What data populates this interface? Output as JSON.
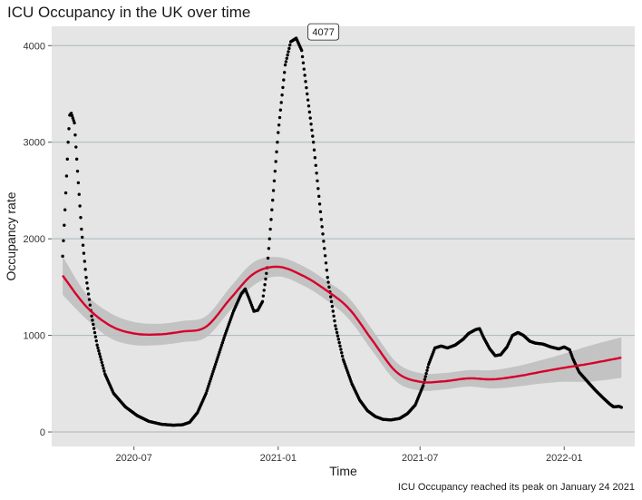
{
  "chart_data": {
    "type": "scatter",
    "title": "ICU Occupancy in the UK over time",
    "caption": "ICU Occupancy reached its peak on January 24 2021",
    "xlabel": "Time",
    "ylabel": "Occupancy rate",
    "x_ticks": [
      "2020-07",
      "2021-01",
      "2021-07",
      "2022-01"
    ],
    "y_ticks": [
      0,
      1000,
      2000,
      3000,
      4000
    ],
    "x_range": [
      "2020-03-18",
      "2022-04-01"
    ],
    "y_range": [
      -150,
      4200
    ],
    "grid": true,
    "peak_label": "4077",
    "peak": {
      "x": "2021-01-24",
      "y": 4077
    },
    "series": [
      {
        "marker": "dot",
        "color": "#000000",
        "anchors": [
          [
            "2020-04-01",
            1820
          ],
          [
            "2020-04-04",
            2300
          ],
          [
            "2020-04-08",
            3000
          ],
          [
            "2020-04-10",
            3280
          ],
          [
            "2020-04-12",
            3300
          ],
          [
            "2020-04-16",
            3200
          ],
          [
            "2020-04-20",
            2700
          ],
          [
            "2020-04-25",
            2100
          ],
          [
            "2020-05-01",
            1600
          ],
          [
            "2020-05-08",
            1200
          ],
          [
            "2020-05-15",
            900
          ],
          [
            "2020-05-25",
            600
          ],
          [
            "2020-06-05",
            400
          ],
          [
            "2020-06-20",
            260
          ],
          [
            "2020-07-05",
            170
          ],
          [
            "2020-07-20",
            110
          ],
          [
            "2020-08-05",
            80
          ],
          [
            "2020-08-20",
            70
          ],
          [
            "2020-09-01",
            75
          ],
          [
            "2020-09-10",
            100
          ],
          [
            "2020-09-20",
            200
          ],
          [
            "2020-10-01",
            400
          ],
          [
            "2020-10-15",
            750
          ],
          [
            "2020-10-25",
            1000
          ],
          [
            "2020-11-05",
            1250
          ],
          [
            "2020-11-15",
            1430
          ],
          [
            "2020-11-20",
            1480
          ],
          [
            "2020-11-25",
            1380
          ],
          [
            "2020-12-01",
            1250
          ],
          [
            "2020-12-06",
            1260
          ],
          [
            "2020-12-12",
            1350
          ],
          [
            "2020-12-18",
            1700
          ],
          [
            "2020-12-25",
            2400
          ],
          [
            "2021-01-01",
            3100
          ],
          [
            "2021-01-10",
            3800
          ],
          [
            "2021-01-17",
            4040
          ],
          [
            "2021-01-24",
            4077
          ],
          [
            "2021-01-31",
            3950
          ],
          [
            "2021-02-07",
            3500
          ],
          [
            "2021-02-15",
            3000
          ],
          [
            "2021-02-25",
            2200
          ],
          [
            "2021-03-05",
            1600
          ],
          [
            "2021-03-15",
            1100
          ],
          [
            "2021-03-25",
            750
          ],
          [
            "2021-04-05",
            500
          ],
          [
            "2021-04-15",
            330
          ],
          [
            "2021-04-25",
            220
          ],
          [
            "2021-05-05",
            160
          ],
          [
            "2021-05-15",
            130
          ],
          [
            "2021-05-25",
            125
          ],
          [
            "2021-06-05",
            140
          ],
          [
            "2021-06-15",
            190
          ],
          [
            "2021-06-25",
            280
          ],
          [
            "2021-07-05",
            480
          ],
          [
            "2021-07-12",
            700
          ],
          [
            "2021-07-20",
            870
          ],
          [
            "2021-07-28",
            890
          ],
          [
            "2021-08-05",
            870
          ],
          [
            "2021-08-15",
            900
          ],
          [
            "2021-08-25",
            960
          ],
          [
            "2021-09-01",
            1020
          ],
          [
            "2021-09-10",
            1060
          ],
          [
            "2021-09-15",
            1070
          ],
          [
            "2021-09-20",
            980
          ],
          [
            "2021-09-28",
            860
          ],
          [
            "2021-10-05",
            790
          ],
          [
            "2021-10-12",
            800
          ],
          [
            "2021-10-20",
            880
          ],
          [
            "2021-10-27",
            1000
          ],
          [
            "2021-11-03",
            1030
          ],
          [
            "2021-11-10",
            1000
          ],
          [
            "2021-11-18",
            940
          ],
          [
            "2021-11-25",
            920
          ],
          [
            "2021-12-05",
            910
          ],
          [
            "2021-12-15",
            880
          ],
          [
            "2021-12-25",
            860
          ],
          [
            "2022-01-01",
            880
          ],
          [
            "2022-01-08",
            850
          ],
          [
            "2022-01-12",
            760
          ],
          [
            "2022-01-20",
            620
          ],
          [
            "2022-02-01",
            510
          ],
          [
            "2022-02-10",
            430
          ],
          [
            "2022-02-20",
            350
          ],
          [
            "2022-02-28",
            290
          ],
          [
            "2022-03-05",
            260
          ],
          [
            "2022-03-12",
            265
          ],
          [
            "2022-03-15",
            255
          ]
        ]
      },
      {
        "type": "smooth",
        "color": "#d7002c",
        "band_color": "#bdbdbd",
        "points": [
          [
            "2020-04-01",
            1620,
            1420,
            1820
          ],
          [
            "2020-05-01",
            1300,
            1170,
            1430
          ],
          [
            "2020-06-01",
            1100,
            970,
            1230
          ],
          [
            "2020-07-01",
            1020,
            900,
            1140
          ],
          [
            "2020-08-01",
            1010,
            900,
            1120
          ],
          [
            "2020-09-01",
            1040,
            930,
            1150
          ],
          [
            "2020-10-01",
            1090,
            980,
            1200
          ],
          [
            "2020-11-01",
            1380,
            1260,
            1500
          ],
          [
            "2020-12-01",
            1640,
            1520,
            1760
          ],
          [
            "2021-01-01",
            1710,
            1610,
            1810
          ],
          [
            "2021-02-01",
            1620,
            1520,
            1720
          ],
          [
            "2021-03-01",
            1480,
            1380,
            1580
          ],
          [
            "2021-04-01",
            1280,
            1170,
            1390
          ],
          [
            "2021-05-01",
            950,
            840,
            1060
          ],
          [
            "2021-06-01",
            620,
            520,
            720
          ],
          [
            "2021-07-01",
            520,
            430,
            610
          ],
          [
            "2021-08-01",
            525,
            440,
            610
          ],
          [
            "2021-09-01",
            555,
            470,
            640
          ],
          [
            "2021-10-01",
            545,
            450,
            640
          ],
          [
            "2021-11-01",
            575,
            470,
            680
          ],
          [
            "2021-12-01",
            620,
            500,
            740
          ],
          [
            "2022-01-01",
            665,
            520,
            810
          ],
          [
            "2022-02-01",
            705,
            520,
            890
          ],
          [
            "2022-03-15",
            770,
            560,
            980
          ]
        ]
      }
    ]
  }
}
